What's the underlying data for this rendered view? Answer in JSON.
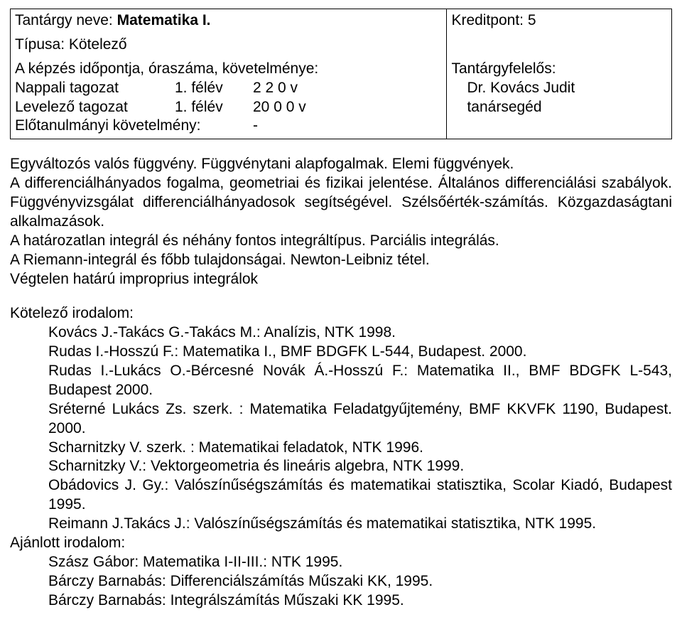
{
  "table": {
    "subject_label": "Tantárgy neve:",
    "subject_bold": "Matematika I.",
    "type_label": "Típusa:",
    "type_value": "Kötelező",
    "kredit_label": "Kreditpont:",
    "kredit_value": "5",
    "sched_title": "A képzés időpontja, óraszáma, követelménye:",
    "row1_label": "Nappali tagozat",
    "row1_sem": "1. félév",
    "row1_hours": "2 2 0 v",
    "row2_label": "Levelező tagozat",
    "row2_sem": "1. félév",
    "row2_hours": "20 0 0 v",
    "prereq_label": "Előtanulmányi követelmény:",
    "prereq_value": "-",
    "resp_title": "Tantárgyfelelős:",
    "resp_line1": "Dr. Kovács Judit",
    "resp_line2": "tanársegéd"
  },
  "desc": {
    "p1": "Egyváltozós valós függvény. Függvénytani alapfogalmak. Elemi függvények.",
    "p2a": "A differenciálhányados fogalma, geometriai és fizikai jelentése. Általános differenciálási szabályok. Függvényvizsgálat differenciálhányadosok segítségével. Szélsőérték-számítás. Közgazdaságtani alkalmazások.",
    "p3": "A határozatlan integrál és néhány fontos integráltípus. Parciális integrálás.",
    "p4": "A Riemann-integrál és főbb tulajdonságai. Newton-Leibniz tétel.",
    "p5": "Végtelen határú improprius integrálok"
  },
  "lit": {
    "kot_title": "Kötelező irodalom:",
    "kot1": "Kovács J.-Takács G.-Takács M.: Analízis, NTK 1998.",
    "kot2": "Rudas I.-Hosszú F.: Matematika I., BMF BDGFK L-544, Budapest. 2000.",
    "kot3": "Rudas I.-Lukács O.-Bércesné Novák Á.-Hosszú F.: Matematika II., BMF BDGFK L-543, Budapest 2000.",
    "kot4": "Sréterné Lukács Zs. szerk. : Matematika Feladatgyűjtemény, BMF KKVFK 1190, Budapest. 2000.",
    "kot5": "Scharnitzky V. szerk. : Matematikai feladatok, NTK 1996.",
    "kot6": "Scharnitzky V.: Vektorgeometria és lineáris algebra, NTK 1999.",
    "kot7": "Obádovics J. Gy.: Valószínűségszámítás és matematikai statisztika, Scolar Kiadó, Budapest 1995.",
    "kot8": "Reimann J.Takács J.: Valószínűségszámítás és matematikai statisztika, NTK 1995.",
    "aj_title": "Ajánlott irodalom:",
    "aj1": "Szász Gábor: Matematika I-II-III.: NTK 1995.",
    "aj2": "Bárczy Barnabás: Differenciálszámítás Műszaki KK, 1995.",
    "aj3": "Bárczy Barnabás: Integrálszámítás Műszaki KK 1995."
  }
}
